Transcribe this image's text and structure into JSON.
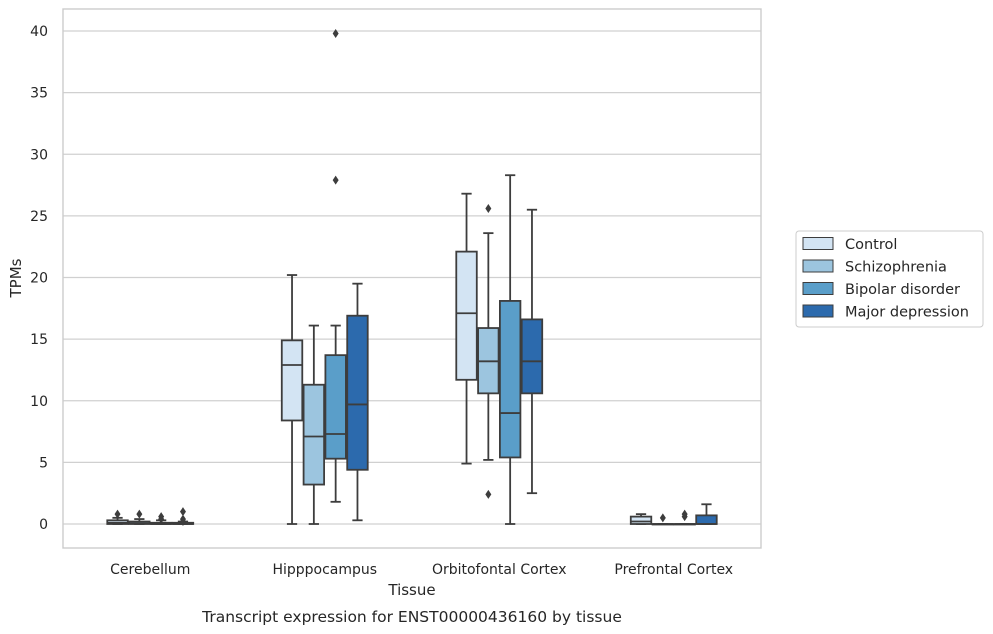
{
  "chart_data": {
    "type": "box",
    "title": "",
    "caption": "Transcript expression for ENST00000436160 by tissue",
    "xlabel": "Tissue",
    "ylabel": "TPMs",
    "ylim": [
      -1.9,
      41.8
    ],
    "yticks": [
      0,
      5,
      10,
      15,
      20,
      25,
      30,
      35,
      40
    ],
    "grid": "horizontal",
    "legend_position": "right-center",
    "categories": [
      "Cerebellum",
      "Hipppocampus",
      "Orbitofontal Cortex",
      "Prefrontal Cortex"
    ],
    "series": [
      {
        "name": "Control",
        "color": "#d3e4f3",
        "boxes": [
          {
            "whislo": 0,
            "q1": 0,
            "med": 0.1,
            "q3": 0.3,
            "whishi": 0.5,
            "fliers": [
              0.8
            ]
          },
          {
            "whislo": 0,
            "q1": 8.4,
            "med": 12.9,
            "q3": 14.9,
            "whishi": 20.2,
            "fliers": []
          },
          {
            "whislo": 4.9,
            "q1": 11.7,
            "med": 17.1,
            "q3": 22.1,
            "whishi": 26.8,
            "fliers": []
          },
          {
            "whislo": 0,
            "q1": 0,
            "med": 0.2,
            "q3": 0.6,
            "whishi": 0.8,
            "fliers": []
          }
        ]
      },
      {
        "name": "Schizophrenia",
        "color": "#9cc5df",
        "boxes": [
          {
            "whislo": 0,
            "q1": 0,
            "med": 0.05,
            "q3": 0.2,
            "whishi": 0.4,
            "fliers": [
              0.8
            ]
          },
          {
            "whislo": 0,
            "q1": 3.2,
            "med": 7.1,
            "q3": 11.3,
            "whishi": 16.1,
            "fliers": []
          },
          {
            "whislo": 5.2,
            "q1": 10.6,
            "med": 13.2,
            "q3": 15.9,
            "whishi": 23.6,
            "fliers": [
              25.6,
              2.4
            ]
          },
          {
            "whislo": 0,
            "q1": 0,
            "med": 0,
            "q3": 0,
            "whishi": 0,
            "fliers": [
              0.5
            ]
          }
        ]
      },
      {
        "name": "Bipolar disorder",
        "color": "#5a9ec9",
        "boxes": [
          {
            "whislo": 0,
            "q1": 0,
            "med": 0,
            "q3": 0.1,
            "whishi": 0.3,
            "fliers": [
              0.6,
              0.4
            ]
          },
          {
            "whislo": 1.8,
            "q1": 5.3,
            "med": 7.3,
            "q3": 13.7,
            "whishi": 16.1,
            "fliers": [
              39.8,
              27.9
            ]
          },
          {
            "whislo": 0,
            "q1": 5.4,
            "med": 9.0,
            "q3": 18.1,
            "whishi": 28.3,
            "fliers": []
          },
          {
            "whislo": 0,
            "q1": 0,
            "med": 0,
            "q3": 0,
            "whishi": 0,
            "fliers": [
              0.8,
              0.6
            ]
          }
        ]
      },
      {
        "name": "Major depression",
        "color": "#2c6aad",
        "boxes": [
          {
            "whislo": 0,
            "q1": 0,
            "med": 0,
            "q3": 0.1,
            "whishi": 0.2,
            "fliers": [
              1.0,
              0.4,
              0.2
            ]
          },
          {
            "whislo": 0.3,
            "q1": 4.4,
            "med": 9.7,
            "q3": 16.9,
            "whishi": 19.5,
            "fliers": []
          },
          {
            "whislo": 2.5,
            "q1": 10.6,
            "med": 13.2,
            "q3": 16.6,
            "whishi": 25.5,
            "fliers": []
          },
          {
            "whislo": 0,
            "q1": 0,
            "med": 0,
            "q3": 0.7,
            "whishi": 1.6,
            "fliers": []
          }
        ]
      }
    ]
  }
}
